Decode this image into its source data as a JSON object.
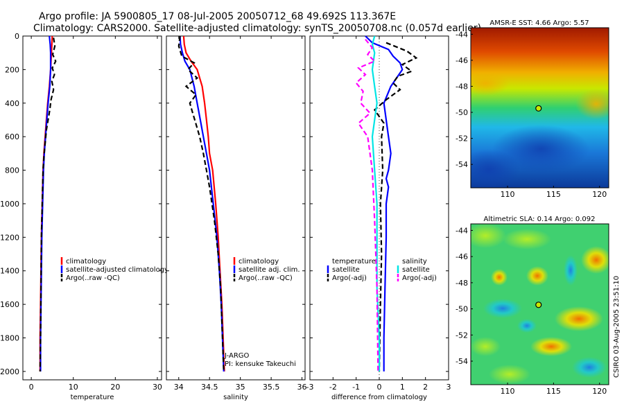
{
  "header": {
    "line1": "Argo profile: JA 5900805_17 08-Jul-2005 20050712_68 49.692S 113.367E",
    "line2": "Climatology: CARS2000. Satellite-adjusted climatology: synTS_20050708.nc (0.057d earlier)"
  },
  "colors": {
    "climatology": "#ff0000",
    "satellite": "#0000ff",
    "argo": "#000000",
    "cyan": "#00e5e5",
    "magenta": "#ff00ff"
  },
  "chart_data": [
    {
      "id": "temperature",
      "type": "line",
      "xlabel": "temperature",
      "ylabel": "",
      "xlim": [
        -2,
        31
      ],
      "ylim": [
        0,
        2050
      ],
      "y_reversed": true,
      "xticks": [
        "0",
        "10",
        "20",
        "30"
      ],
      "xtick_values": [
        0,
        10,
        20,
        30
      ],
      "yticks": [
        "0",
        "200",
        "400",
        "600",
        "800",
        "1000",
        "1200",
        "1400",
        "1600",
        "1800",
        "2000"
      ],
      "ytick_values": [
        0,
        200,
        400,
        600,
        800,
        1000,
        1200,
        1400,
        1600,
        1800,
        2000
      ],
      "series": [
        {
          "name": "climatology",
          "color": "climatology",
          "dash": "none",
          "x": [
            5.0,
            4.9,
            4.8,
            4.6,
            4.3,
            3.9,
            3.6,
            3.3,
            3.0,
            2.8,
            2.6,
            2.4,
            2.3,
            2.2,
            2.1,
            2.1
          ],
          "y": [
            0,
            50,
            100,
            200,
            300,
            400,
            500,
            600,
            700,
            800,
            1000,
            1200,
            1400,
            1600,
            1800,
            2000
          ]
        },
        {
          "name": "satellite-adjusted climatology",
          "color": "satellite",
          "dash": "none",
          "x": [
            4.3,
            4.5,
            4.6,
            4.6,
            4.4,
            4.0,
            3.7,
            3.4,
            3.1,
            2.9,
            2.7,
            2.5,
            2.4,
            2.3,
            2.2,
            2.2
          ],
          "y": [
            0,
            50,
            100,
            200,
            300,
            400,
            500,
            600,
            700,
            800,
            1000,
            1200,
            1400,
            1600,
            1800,
            2000
          ]
        },
        {
          "name": "Argo(..raw -QC)",
          "color": "argo",
          "dash": "dash",
          "x": [
            5.3,
            5.6,
            5.1,
            5.8,
            5.0,
            5.5,
            4.9,
            5.3,
            4.7,
            4.4,
            4.0,
            3.6,
            3.3,
            3.0,
            2.8,
            2.6,
            2.4,
            2.3,
            2.2,
            2.1
          ],
          "y": [
            10,
            60,
            110,
            150,
            190,
            230,
            270,
            320,
            380,
            440,
            500,
            560,
            640,
            720,
            800,
            1000,
            1200,
            1500,
            1800,
            2000
          ]
        }
      ],
      "legend": {
        "position": "center-right",
        "entries": [
          {
            "label": "climatology",
            "color": "climatology",
            "dash": "none"
          },
          {
            "label": "satellite-adjusted climatology",
            "color": "satellite",
            "dash": "none"
          },
          {
            "label": "Argo(..raw -QC)",
            "color": "argo",
            "dash": "dash"
          }
        ]
      }
    },
    {
      "id": "salinity",
      "type": "line",
      "xlabel": "salinity",
      "xlim": [
        33.8,
        36.05
      ],
      "ylim": [
        0,
        2050
      ],
      "y_reversed": true,
      "xticks": [
        "34",
        "34.5",
        "35",
        "35.5",
        "36"
      ],
      "xtick_values": [
        34,
        34.5,
        35,
        35.5,
        36
      ],
      "series": [
        {
          "name": "climatology",
          "color": "climatology",
          "dash": "none",
          "x": [
            34.08,
            34.09,
            34.12,
            34.2,
            34.3,
            34.38,
            34.42,
            34.45,
            34.48,
            34.5,
            34.55,
            34.6,
            34.64,
            34.67,
            34.7,
            34.72,
            34.74
          ],
          "y": [
            0,
            50,
            100,
            150,
            200,
            300,
            400,
            500,
            600,
            700,
            800,
            1000,
            1200,
            1400,
            1600,
            1800,
            2000
          ]
        },
        {
          "name": "satellite adj. clim.",
          "color": "satellite",
          "dash": "none",
          "x": [
            34.02,
            34.03,
            34.06,
            34.1,
            34.18,
            34.25,
            34.3,
            34.35,
            34.4,
            34.45,
            34.5,
            34.56,
            34.62,
            34.66,
            34.69,
            34.71,
            34.73
          ],
          "y": [
            0,
            50,
            100,
            150,
            200,
            300,
            400,
            500,
            600,
            700,
            800,
            1000,
            1200,
            1400,
            1600,
            1800,
            2000
          ]
        },
        {
          "name": "Argo(..raw -QC)",
          "color": "argo",
          "dash": "dash",
          "x": [
            34.02,
            34.0,
            34.05,
            34.25,
            34.15,
            34.3,
            34.12,
            34.28,
            34.18,
            34.22,
            34.26,
            34.34,
            34.4,
            34.45,
            34.5,
            34.58,
            34.64,
            34.68,
            34.71,
            34.73
          ],
          "y": [
            0,
            60,
            120,
            160,
            200,
            250,
            300,
            350,
            400,
            450,
            500,
            600,
            700,
            800,
            900,
            1100,
            1300,
            1500,
            1800,
            2000
          ]
        }
      ],
      "legend": {
        "position": "center-right",
        "entries": [
          {
            "label": "climatology",
            "color": "climatology",
            "dash": "none"
          },
          {
            "label": "satellite adj. clim.",
            "color": "satellite",
            "dash": "none"
          },
          {
            "label": "Argo(..raw -QC)",
            "color": "argo",
            "dash": "dash"
          }
        ]
      },
      "annotations": [
        "J-ARGO",
        "PI: kensuke Takeuchi"
      ]
    },
    {
      "id": "difference",
      "type": "line",
      "xlabel": "difference from climatology",
      "xlim": [
        -3,
        3
      ],
      "ylim": [
        0,
        2050
      ],
      "y_reversed": true,
      "xticks": [
        "-3",
        "-2",
        "-1",
        "0",
        "1",
        "2",
        "3"
      ],
      "xtick_values": [
        -3,
        -2,
        -1,
        0,
        1,
        2,
        3
      ],
      "zero_line": true,
      "series": [
        {
          "name": "temperature satellite",
          "color": "satellite",
          "dash": "none",
          "x": [
            -0.6,
            -0.3,
            0.4,
            0.6,
            0.9,
            1.0,
            0.5,
            0.2,
            0.3,
            0.4,
            0.5,
            0.4,
            0.3,
            0.4,
            0.3,
            0.3,
            0.25,
            0.2,
            0.2
          ],
          "y": [
            0,
            40,
            80,
            120,
            160,
            200,
            300,
            400,
            500,
            600,
            700,
            800,
            850,
            900,
            1000,
            1200,
            1500,
            1800,
            2000
          ]
        },
        {
          "name": "temperature Argo(-adj)",
          "color": "argo",
          "dash": "dash",
          "x": [
            0.3,
            1.2,
            1.6,
            1.0,
            1.4,
            0.8,
            0.6,
            0.9,
            0.3,
            -0.2,
            0.2,
            0.1,
            0.15,
            0.05,
            0.1,
            0.05,
            0.0
          ],
          "y": [
            40,
            90,
            130,
            170,
            210,
            240,
            280,
            320,
            380,
            440,
            520,
            600,
            800,
            1000,
            1300,
            1600,
            2000
          ]
        },
        {
          "name": "salinity satellite",
          "color": "cyan",
          "dash": "none",
          "x": [
            -0.2,
            -0.3,
            -0.2,
            -0.3,
            -0.2,
            -0.1,
            -0.2,
            -0.3,
            -0.2,
            -0.1,
            -0.1,
            -0.1,
            0.0,
            0.0
          ],
          "y": [
            0,
            50,
            100,
            200,
            300,
            400,
            500,
            600,
            800,
            1000,
            1200,
            1500,
            1800,
            2000
          ]
        },
        {
          "name": "salinity Argo(-adj)",
          "color": "magenta",
          "dash": "dash",
          "x": [
            -0.6,
            -0.3,
            -0.5,
            -0.2,
            -0.9,
            -0.6,
            -1.0,
            -0.7,
            -0.8,
            -0.4,
            -0.9,
            -0.5,
            -0.3,
            -0.2,
            -0.1,
            -0.05
          ],
          "y": [
            20,
            70,
            110,
            150,
            190,
            230,
            280,
            330,
            400,
            460,
            520,
            600,
            800,
            1100,
            1500,
            2000
          ]
        }
      ],
      "legend_temperature": {
        "title": "temperature",
        "entries": [
          {
            "label": "satellite",
            "color": "satellite",
            "dash": "none"
          },
          {
            "label": "Argo(-adj)",
            "color": "argo",
            "dash": "dash"
          }
        ]
      },
      "legend_salinity": {
        "title": "salinity",
        "entries": [
          {
            "label": "satellite",
            "color": "cyan",
            "dash": "none"
          },
          {
            "label": "Argo(-adj)",
            "color": "magenta",
            "dash": "dash"
          }
        ]
      }
    },
    {
      "id": "sst_map",
      "type": "heatmap",
      "title": "AMSR-E SST: 4.66 Argo: 5.57",
      "xlim": [
        106,
        121
      ],
      "ylim": [
        -55.8,
        -43.5
      ],
      "xticks": [
        "110",
        "115",
        "120"
      ],
      "xtick_values": [
        110,
        115,
        120
      ],
      "yticks": [
        "-44",
        "-46",
        "-48",
        "-50",
        "-52",
        "-54"
      ],
      "ytick_values": [
        -44,
        -46,
        -48,
        -50,
        -52,
        -54
      ],
      "marker": {
        "lon": 113.367,
        "lat": -49.692
      }
    },
    {
      "id": "sla_map",
      "type": "heatmap",
      "title": "Altimetric SLA: 0.14 Argo: 0.092",
      "xlim": [
        106,
        121
      ],
      "ylim": [
        -55.8,
        -43.5
      ],
      "xticks": [
        "110",
        "115",
        "120"
      ],
      "xtick_values": [
        110,
        115,
        120
      ],
      "yticks": [
        "-44",
        "-46",
        "-48",
        "-50",
        "-52",
        "-54"
      ],
      "ytick_values": [
        -44,
        -46,
        -48,
        -50,
        -52,
        -54
      ],
      "marker": {
        "lon": 113.367,
        "lat": -49.692
      }
    }
  ],
  "footer": {
    "stamp": "CSIRO 03-Aug-2005 23:51:10"
  }
}
